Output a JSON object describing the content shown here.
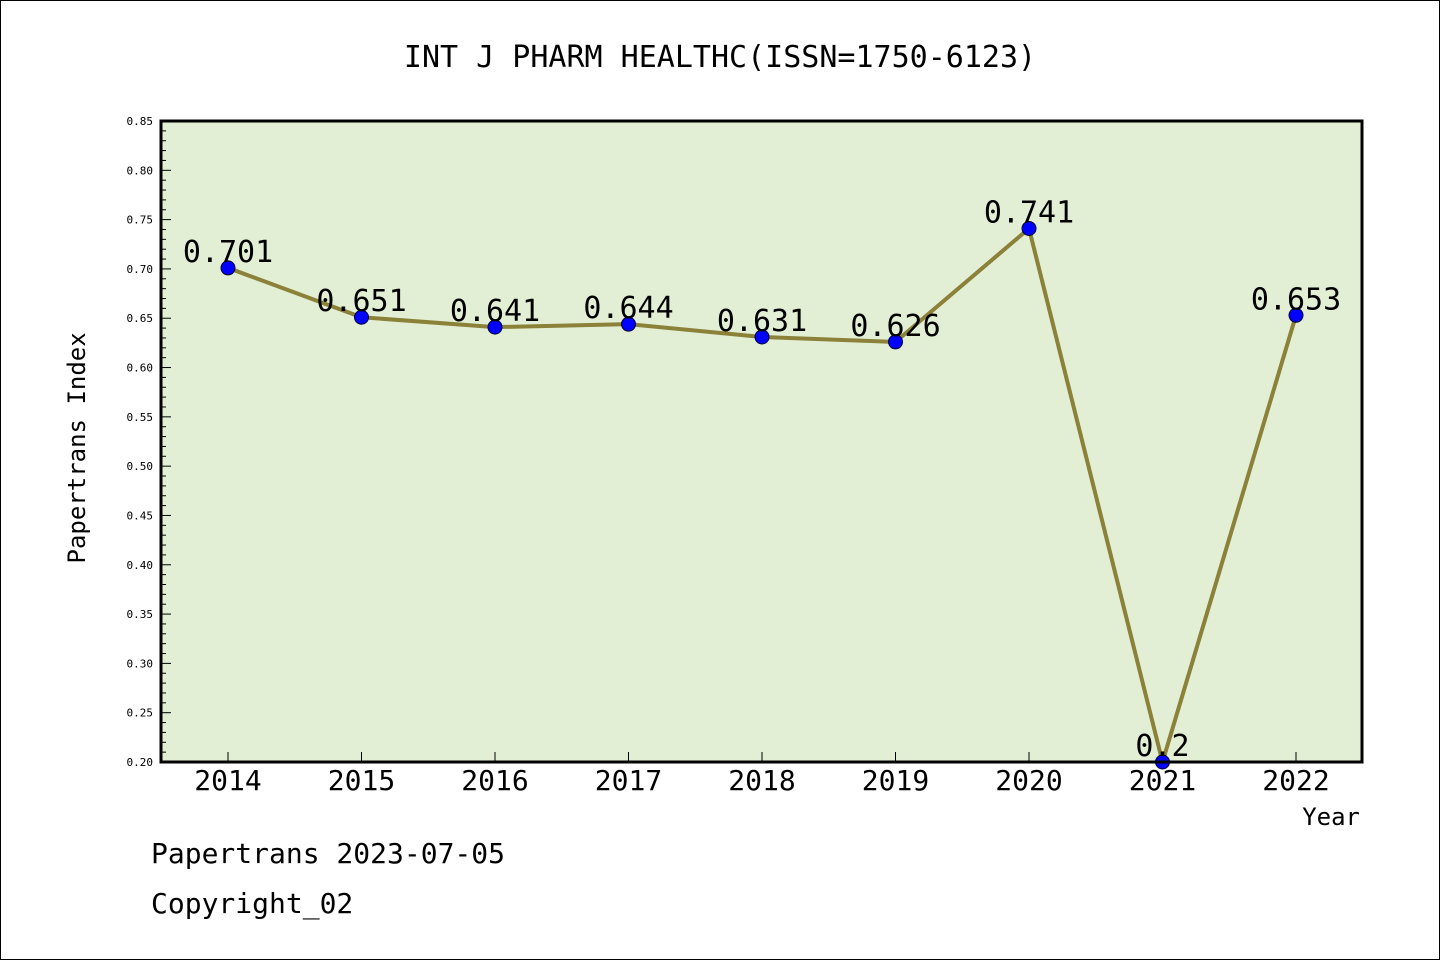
{
  "chart_data": {
    "type": "line",
    "title": "INT J PHARM HEALTHC(ISSN=1750-6123)",
    "xlabel": "Year",
    "ylabel": "Papertrans Index",
    "categories": [
      "2014",
      "2015",
      "2016",
      "2017",
      "2018",
      "2019",
      "2020",
      "2021",
      "2022"
    ],
    "series": [
      {
        "values": [
          0.701,
          0.651,
          0.641,
          0.644,
          0.631,
          0.626,
          0.741,
          0.2,
          0.653
        ],
        "data_labels": [
          "0.701",
          "0.651",
          "0.641",
          "0.644",
          "0.631",
          "0.626",
          "0.741",
          "0.2",
          "0.653"
        ]
      }
    ],
    "ylim": [
      0.2,
      0.85
    ],
    "yticks": [
      "0.20",
      "0.25",
      "0.30",
      "0.35",
      "0.40",
      "0.45",
      "0.50",
      "0.55",
      "0.60",
      "0.65",
      "0.70",
      "0.75",
      "0.80",
      "0.85"
    ],
    "grid": false,
    "legend": "none",
    "colors": {
      "plot_background": "#e2efd4",
      "line": "#8b8138",
      "marker": "#0000ff",
      "axis": "#000000"
    }
  },
  "footer": {
    "line1": "Papertrans 2023-07-05",
    "line2": "Copyright_02"
  }
}
